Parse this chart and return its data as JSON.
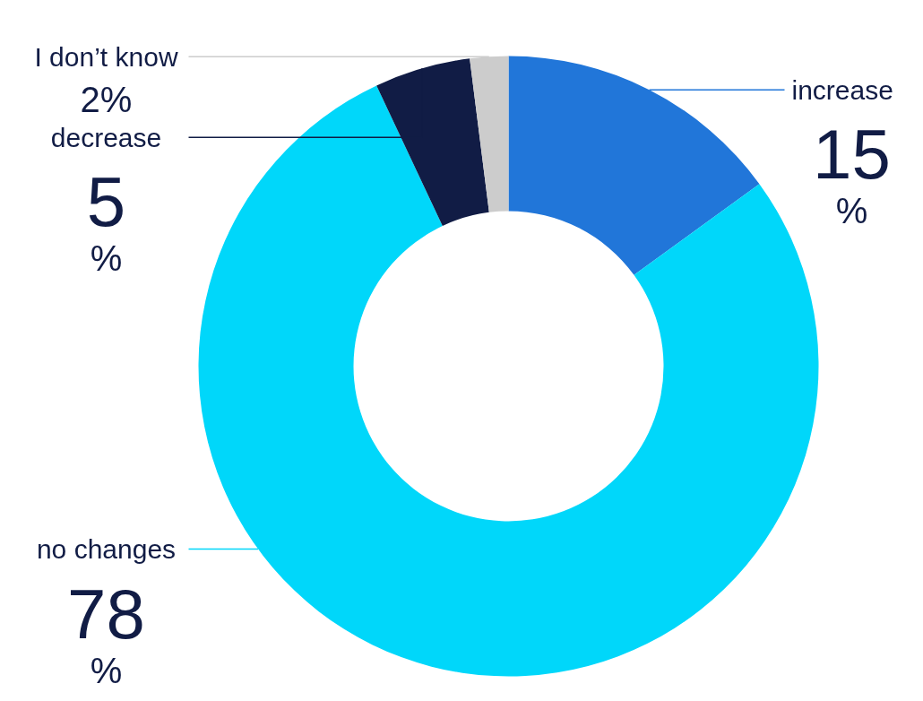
{
  "chart_data": {
    "type": "donut",
    "categories": [
      "increase",
      "no changes",
      "decrease",
      "I don’t know"
    ],
    "values": [
      15,
      78,
      5,
      2
    ],
    "colors": [
      "#2176d9",
      "#00d7fa",
      "#111c45",
      "#cccccc"
    ],
    "value_labels": [
      "15\n%",
      "78\n%",
      "5\n%",
      "2%"
    ]
  }
}
